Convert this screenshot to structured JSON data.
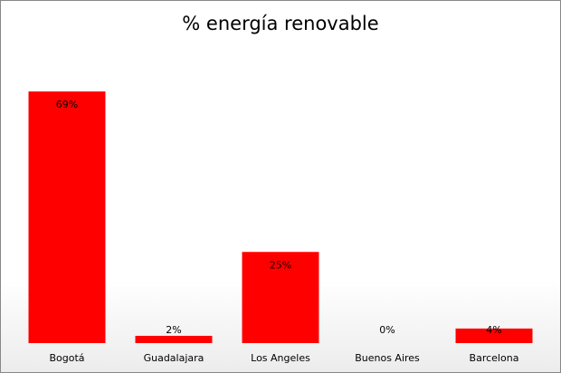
{
  "chart_data": {
    "type": "bar",
    "title": "% energía renovable",
    "categories": [
      "Bogotá",
      "Guadalajara",
      "Los Angeles",
      "Buenos Aires",
      "Barcelona"
    ],
    "values": [
      69,
      2,
      25,
      0,
      4
    ],
    "value_labels": [
      "69%",
      "2%",
      "25%",
      "0%",
      "4%"
    ],
    "color": "#ff0000"
  }
}
